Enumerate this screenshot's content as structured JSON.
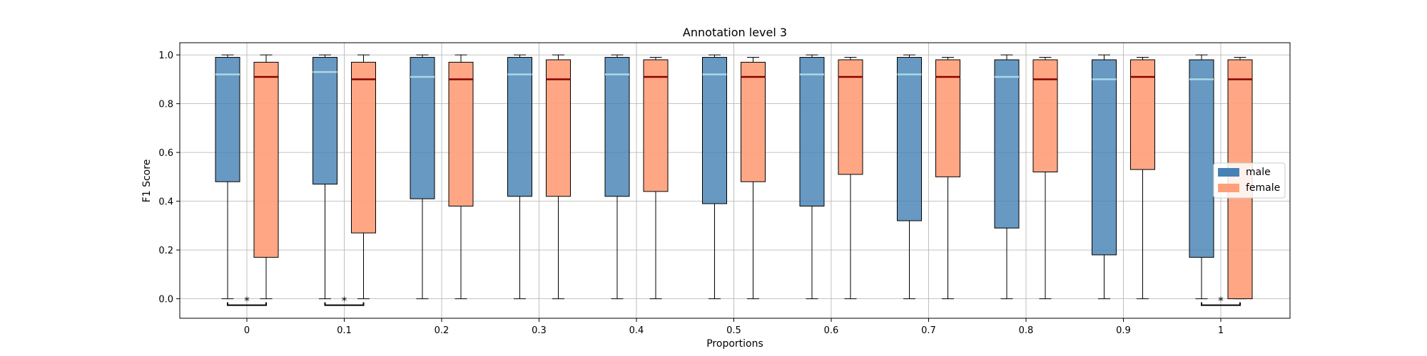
{
  "chart_data": {
    "type": "box",
    "title": "Annotation level 3",
    "xlabel": "Proportions",
    "ylabel": "F1 Score",
    "categories": [
      "0",
      "0.1",
      "0.2",
      "0.3",
      "0.4",
      "0.5",
      "0.6",
      "0.7",
      "0.8",
      "0.9",
      "1"
    ],
    "ylim": [
      -0.08,
      1.05
    ],
    "yticks": [
      "0.0",
      "0.2",
      "0.4",
      "0.6",
      "0.8",
      "1.0"
    ],
    "grid": true,
    "legend_position": "center-right",
    "series": [
      {
        "name": "male",
        "color": "#4682b4",
        "median_color": "#add8e6",
        "boxes": [
          {
            "whislo": 0.0,
            "q1": 0.48,
            "med": 0.92,
            "q3": 0.99,
            "whishi": 1.0
          },
          {
            "whislo": 0.0,
            "q1": 0.47,
            "med": 0.93,
            "q3": 0.99,
            "whishi": 1.0
          },
          {
            "whislo": 0.0,
            "q1": 0.41,
            "med": 0.91,
            "q3": 0.99,
            "whishi": 1.0
          },
          {
            "whislo": 0.0,
            "q1": 0.42,
            "med": 0.92,
            "q3": 0.99,
            "whishi": 1.0
          },
          {
            "whislo": 0.0,
            "q1": 0.42,
            "med": 0.92,
            "q3": 0.99,
            "whishi": 1.0
          },
          {
            "whislo": 0.0,
            "q1": 0.39,
            "med": 0.92,
            "q3": 0.99,
            "whishi": 1.0
          },
          {
            "whislo": 0.0,
            "q1": 0.38,
            "med": 0.92,
            "q3": 0.99,
            "whishi": 1.0
          },
          {
            "whislo": 0.0,
            "q1": 0.32,
            "med": 0.92,
            "q3": 0.99,
            "whishi": 1.0
          },
          {
            "whislo": 0.0,
            "q1": 0.29,
            "med": 0.91,
            "q3": 0.98,
            "whishi": 1.0
          },
          {
            "whislo": 0.0,
            "q1": 0.18,
            "med": 0.9,
            "q3": 0.98,
            "whishi": 1.0
          },
          {
            "whislo": 0.0,
            "q1": 0.17,
            "med": 0.9,
            "q3": 0.98,
            "whishi": 1.0
          }
        ]
      },
      {
        "name": "female",
        "color": "#ffa07a",
        "median_color": "#8b0000",
        "boxes": [
          {
            "whislo": 0.0,
            "q1": 0.17,
            "med": 0.91,
            "q3": 0.97,
            "whishi": 1.0
          },
          {
            "whislo": 0.0,
            "q1": 0.27,
            "med": 0.9,
            "q3": 0.97,
            "whishi": 1.0
          },
          {
            "whislo": 0.0,
            "q1": 0.38,
            "med": 0.9,
            "q3": 0.97,
            "whishi": 1.0
          },
          {
            "whislo": 0.0,
            "q1": 0.42,
            "med": 0.9,
            "q3": 0.98,
            "whishi": 1.0
          },
          {
            "whislo": 0.0,
            "q1": 0.44,
            "med": 0.91,
            "q3": 0.98,
            "whishi": 0.99
          },
          {
            "whislo": 0.0,
            "q1": 0.48,
            "med": 0.91,
            "q3": 0.97,
            "whishi": 0.99
          },
          {
            "whislo": 0.0,
            "q1": 0.51,
            "med": 0.91,
            "q3": 0.98,
            "whishi": 0.99
          },
          {
            "whislo": 0.0,
            "q1": 0.5,
            "med": 0.91,
            "q3": 0.98,
            "whishi": 0.99
          },
          {
            "whislo": 0.0,
            "q1": 0.52,
            "med": 0.9,
            "q3": 0.98,
            "whishi": 0.99
          },
          {
            "whislo": 0.0,
            "q1": 0.53,
            "med": 0.91,
            "q3": 0.98,
            "whishi": 0.99
          },
          {
            "whislo": 0.0,
            "q1": 0.0,
            "med": 0.9,
            "q3": 0.98,
            "whishi": 0.99
          }
        ]
      }
    ],
    "significance": [
      {
        "category_index": 0,
        "label": "*"
      },
      {
        "category_index": 1,
        "label": "*"
      },
      {
        "category_index": 10,
        "label": "*"
      }
    ]
  }
}
